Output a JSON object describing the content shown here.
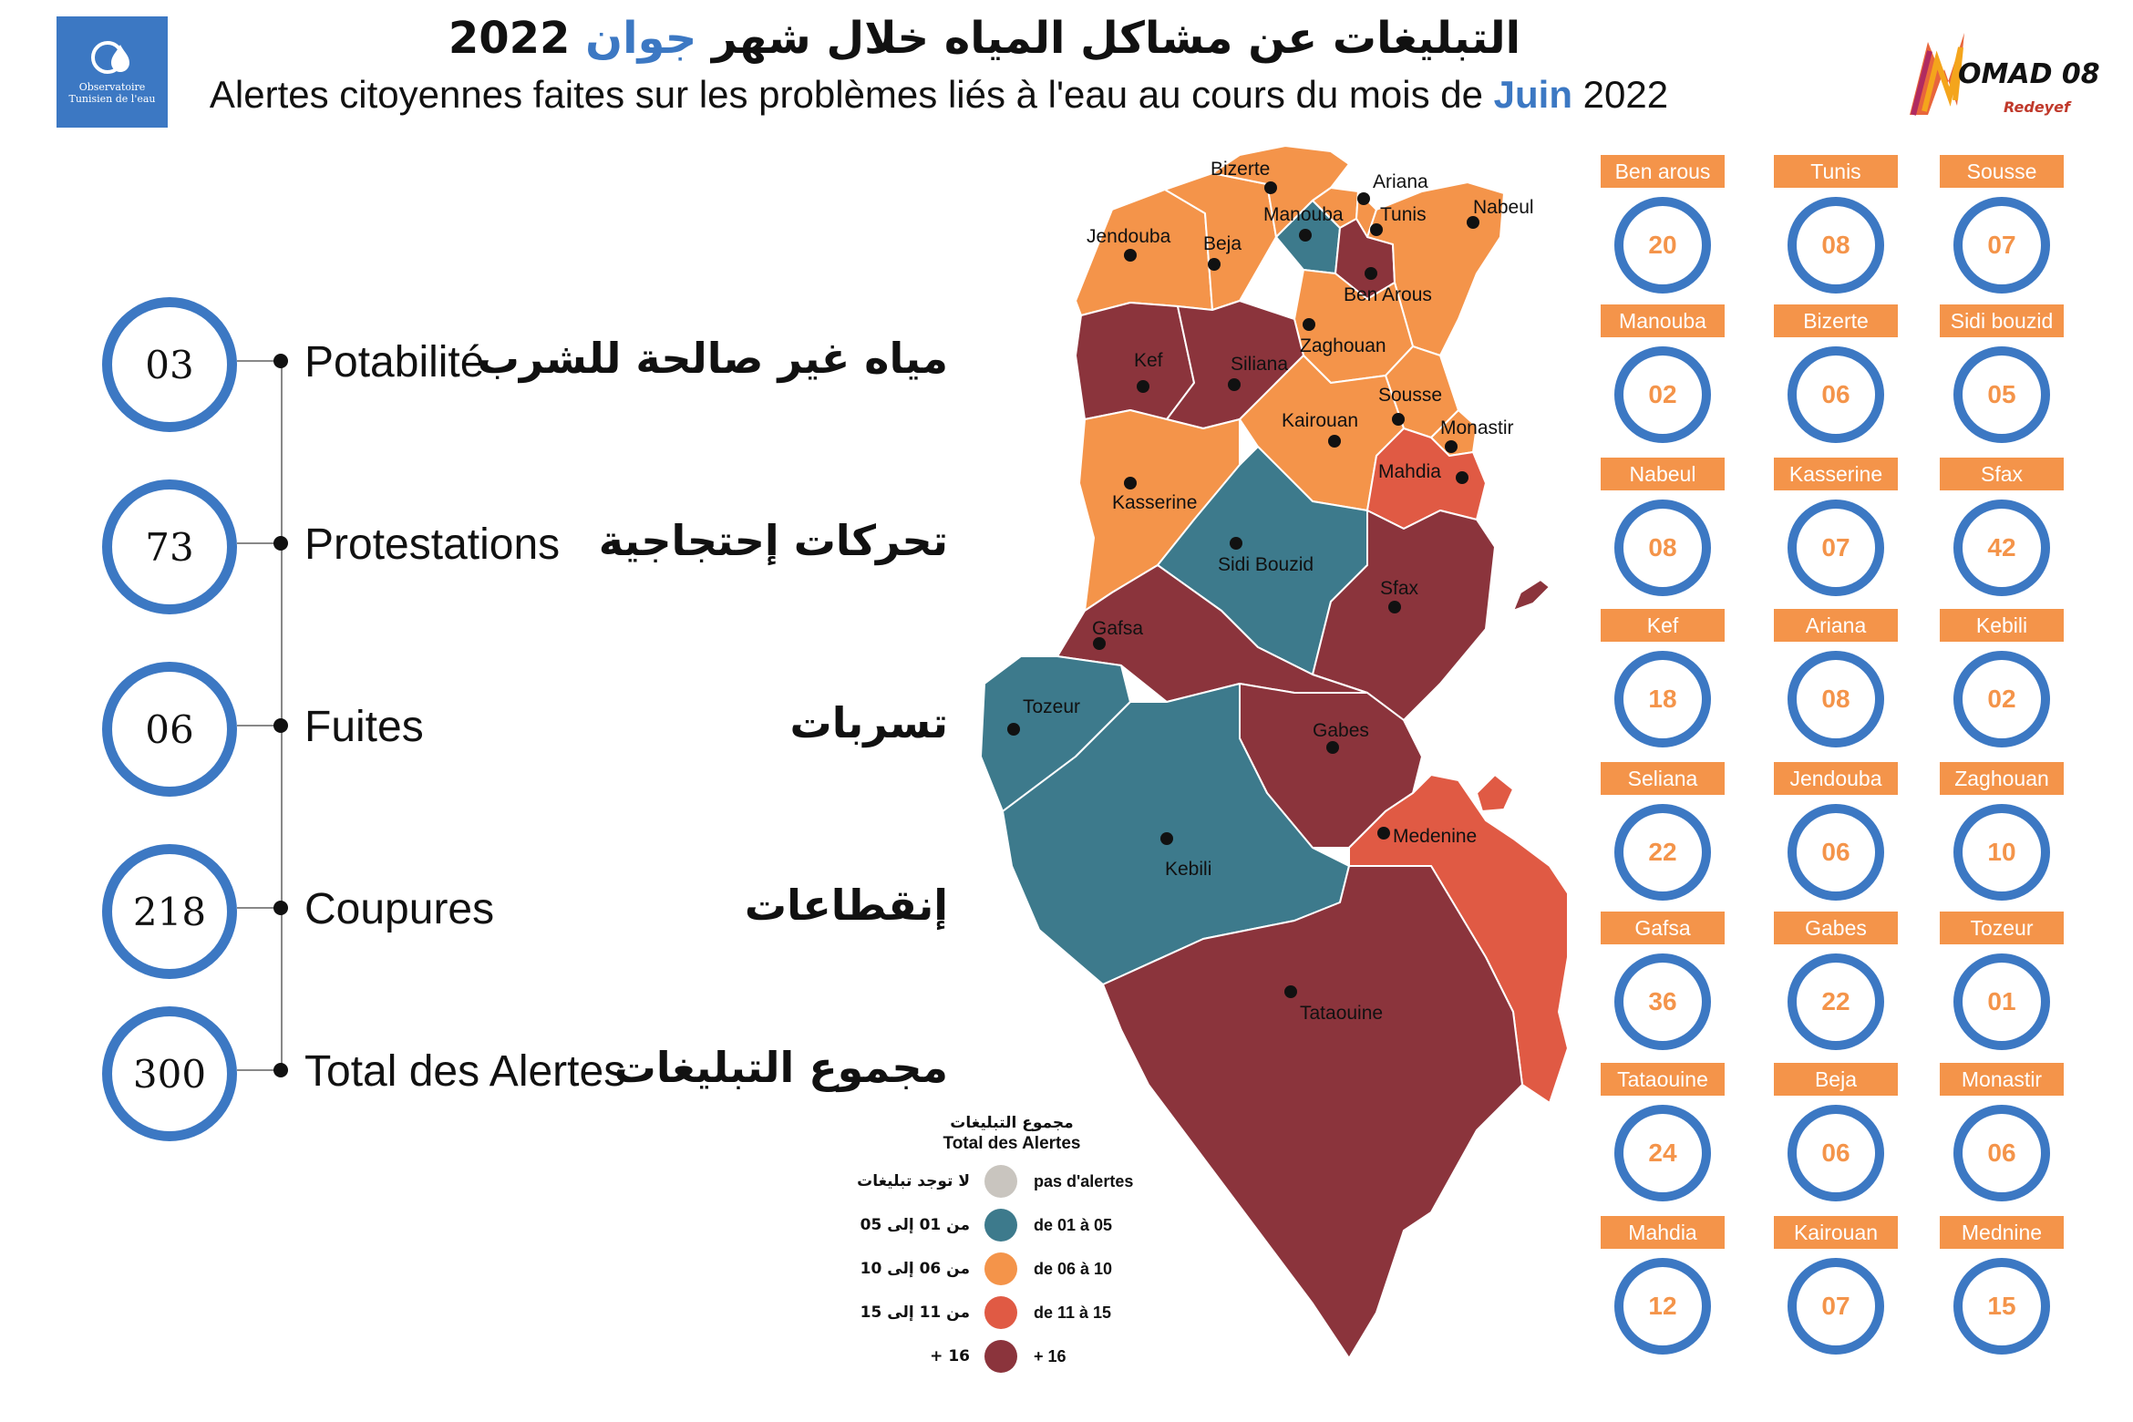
{
  "header": {
    "logo_left_text": "Observatoire Tunisien de l'eau",
    "title_ar_before": "التبليغات عن مشاكل المياه خلال شهر",
    "title_ar_month": "جوان",
    "title_ar_year": "2022",
    "title_fr_before": "Alertes citoyennes faites sur les problèmes liés à l'eau au cours du mois de",
    "title_fr_month": "Juin",
    "title_fr_year": "2022",
    "logo_right_text": "OMAD 08",
    "logo_right_sub": "Redeyef"
  },
  "stats": [
    {
      "value": "03",
      "label_fr": "Potabilité",
      "label_ar": "مياه غير صالحة للشرب"
    },
    {
      "value": "73",
      "label_fr": "Protestations",
      "label_ar": "تحركات إحتجاجية"
    },
    {
      "value": "06",
      "label_fr": "Fuites",
      "label_ar": "تسربات"
    },
    {
      "value": "218",
      "label_fr": "Coupures",
      "label_ar": "إنقطاعات"
    },
    {
      "value": "300",
      "label_fr": "Total des Alertes",
      "label_ar": "مجموع التبليغات"
    }
  ],
  "map_labels": [
    "Bizerte",
    "Ariana",
    "Nabeul",
    "Manouba",
    "Tunis",
    "Jendouba",
    "Beja",
    "Ben Arous",
    "Zaghouan",
    "Kef",
    "Siliana",
    "Sousse",
    "Monastir",
    "Kairouan",
    "Mahdia",
    "Kasserine",
    "Sidi Bouzid",
    "Sfax",
    "Gafsa",
    "Tozeur",
    "Gabes",
    "Medenine",
    "Kebili",
    "Tataouine"
  ],
  "legend": {
    "title_ar": "مجموع التبليغات",
    "title_fr": "Total des Alertes",
    "rows": [
      {
        "ar": "لا توجد تبليغات",
        "fr": "pas d'alertes",
        "color": "#c9c5bf"
      },
      {
        "ar": "من 01 إلى 05",
        "fr": "de 01 à 05",
        "color": "#3d7a8c"
      },
      {
        "ar": "من 06 إلى 10",
        "fr": "de 06 à 10",
        "color": "#f4944a"
      },
      {
        "ar": "من 11 إلى 15",
        "fr": "de 11 à 15",
        "color": "#e05a44"
      },
      {
        "ar": "16 +",
        "fr": "+ 16",
        "color": "#8b343c"
      }
    ]
  },
  "governorates": [
    {
      "name": "Ben arous",
      "value": "20"
    },
    {
      "name": "Tunis",
      "value": "08"
    },
    {
      "name": "Sousse",
      "value": "07"
    },
    {
      "name": "Manouba",
      "value": "02"
    },
    {
      "name": "Bizerte",
      "value": "06"
    },
    {
      "name": "Sidi bouzid",
      "value": "05"
    },
    {
      "name": "Nabeul",
      "value": "08"
    },
    {
      "name": "Kasserine",
      "value": "07"
    },
    {
      "name": "Sfax",
      "value": "42"
    },
    {
      "name": "Kef",
      "value": "18"
    },
    {
      "name": "Ariana",
      "value": "08"
    },
    {
      "name": "Kebili",
      "value": "02"
    },
    {
      "name": "Seliana",
      "value": "22"
    },
    {
      "name": "Jendouba",
      "value": "06"
    },
    {
      "name": "Zaghouan",
      "value": "10"
    },
    {
      "name": "Gafsa",
      "value": "36"
    },
    {
      "name": "Gabes",
      "value": "22"
    },
    {
      "name": "Tozeur",
      "value": "01"
    },
    {
      "name": "Tataouine",
      "value": "24"
    },
    {
      "name": "Beja",
      "value": "06"
    },
    {
      "name": "Monastir",
      "value": "06"
    },
    {
      "name": "Mahdia",
      "value": "12"
    },
    {
      "name": "Kairouan",
      "value": "07"
    },
    {
      "name": "Mednine",
      "value": "15"
    }
  ]
}
